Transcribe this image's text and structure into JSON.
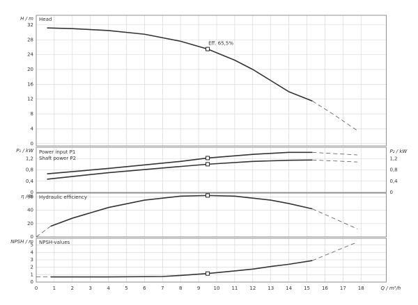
{
  "chart_data": [
    {
      "type": "line",
      "label": "Head",
      "ylabel": "H / m",
      "xlim": [
        0,
        19.4
      ],
      "xticks": [
        0,
        1,
        2,
        3,
        4,
        5,
        6,
        7,
        8,
        9,
        10,
        11,
        12,
        13,
        14,
        15,
        16,
        17,
        18
      ],
      "ylim": [
        -0.6,
        34.6
      ],
      "yticks": [
        0,
        4,
        8,
        12,
        16,
        20,
        24,
        28,
        32
      ],
      "grid": true,
      "series": [
        {
          "style": "solid",
          "color": "#333333",
          "x": [
            0.6,
            2,
            4,
            6,
            8,
            9.5,
            11,
            12,
            13,
            14,
            15.3
          ],
          "values": [
            31.2,
            31,
            30.5,
            29.5,
            27.6,
            25.5,
            22.5,
            20,
            17,
            14,
            11.5
          ]
        },
        {
          "style": "dashed",
          "color": "#555555",
          "x": [
            15.3,
            16.5,
            17.8
          ],
          "values": [
            11.5,
            7.8,
            3.5
          ]
        }
      ],
      "marker": {
        "x": 9.5,
        "y": 25.5
      },
      "annotation": "Eff.  65,5%"
    },
    {
      "type": "line",
      "ylabel": "P₁ / kW",
      "y2label": "P₂ / kW",
      "xlim": [
        0,
        19.4
      ],
      "xticks": [
        0,
        1,
        2,
        3,
        4,
        5,
        6,
        7,
        8,
        9,
        10,
        11,
        12,
        13,
        14,
        15,
        16,
        17,
        18
      ],
      "ylim": [
        0,
        1.6
      ],
      "yticks": [
        0,
        {
          "value": 0.4,
          "label": "0,4"
        },
        {
          "value": 0.8,
          "label": "0,8"
        },
        {
          "value": 1.2,
          "label": "1,2"
        }
      ],
      "y2ticks": [
        0,
        {
          "value": 0.4,
          "label": "0,4"
        },
        {
          "value": 0.8,
          "label": "0,8"
        },
        {
          "value": 1.2,
          "label": "1,2"
        }
      ],
      "grid": true,
      "series": [
        {
          "name": "Power input P1",
          "style": "solid",
          "color": "#333333",
          "x": [
            0.6,
            4,
            8,
            9.5,
            12,
            14,
            15.3
          ],
          "values": [
            0.66,
            0.85,
            1.1,
            1.22,
            1.35,
            1.42,
            1.42
          ]
        },
        {
          "style": "dashed",
          "color": "#555555",
          "x": [
            15.3,
            17.8
          ],
          "values": [
            1.42,
            1.33
          ]
        },
        {
          "name": "Shaft power P2",
          "style": "solid",
          "color": "#333333",
          "x": [
            0.6,
            4,
            8,
            9.5,
            12,
            14,
            15.3
          ],
          "values": [
            0.47,
            0.7,
            0.92,
            1.0,
            1.1,
            1.14,
            1.15
          ]
        },
        {
          "style": "dashed",
          "color": "#555555",
          "x": [
            15.3,
            17.8
          ],
          "values": [
            1.15,
            1.08
          ]
        }
      ],
      "markers": [
        {
          "x": 9.5,
          "y": 1.22
        },
        {
          "x": 9.5,
          "y": 1.0
        }
      ]
    },
    {
      "type": "line",
      "label": "Hydraulic efficiency",
      "ylabel": "η / %",
      "xlim": [
        0,
        19.4
      ],
      "xticks": [
        0,
        1,
        2,
        3,
        4,
        5,
        6,
        7,
        8,
        9,
        10,
        11,
        12,
        13,
        14,
        15,
        16,
        17,
        18
      ],
      "ylim": [
        0,
        65.5
      ],
      "yticks": [
        0,
        20,
        40,
        60
      ],
      "grid": true,
      "series": [
        {
          "style": "dashed",
          "color": "#555555",
          "x": [
            0,
            0.8
          ],
          "values": [
            0,
            16
          ]
        },
        {
          "style": "solid",
          "color": "#333333",
          "x": [
            0.8,
            2,
            4,
            6,
            8,
            9.5,
            11,
            13,
            14,
            15.3
          ],
          "values": [
            16,
            28,
            44,
            55,
            61,
            62,
            61,
            55,
            50,
            42
          ]
        },
        {
          "style": "dashed",
          "color": "#555555",
          "x": [
            15.3,
            17.8
          ],
          "values": [
            42,
            12
          ]
        }
      ],
      "marker": {
        "x": 9.5,
        "y": 62
      }
    },
    {
      "type": "line",
      "label": "NPSH-values",
      "ylabel": "NPSH / m",
      "xlabel": "Q / m³/h",
      "xlim": [
        0,
        19.4
      ],
      "xticks": [
        0,
        1,
        2,
        3,
        4,
        5,
        6,
        7,
        8,
        9,
        10,
        11,
        12,
        13,
        14,
        15,
        16,
        17,
        18
      ],
      "ylim": [
        0,
        5.9
      ],
      "yticks": [
        0,
        1,
        2,
        3,
        4,
        5
      ],
      "grid": true,
      "series": [
        {
          "style": "dashed",
          "color": "#555555",
          "x": [
            0,
            0.8
          ],
          "values": [
            0.7,
            0.7
          ]
        },
        {
          "style": "solid",
          "color": "#333333",
          "x": [
            0.8,
            4,
            7,
            8,
            9.5,
            11,
            12,
            13,
            14,
            15.3
          ],
          "values": [
            0.7,
            0.7,
            0.75,
            0.9,
            1.15,
            1.5,
            1.75,
            2.1,
            2.4,
            2.9
          ]
        },
        {
          "style": "dashed",
          "color": "#555555",
          "x": [
            15.3,
            17.8
          ],
          "values": [
            2.9,
            5.4
          ]
        }
      ],
      "marker": {
        "x": 9.5,
        "y": 1.15
      }
    }
  ]
}
